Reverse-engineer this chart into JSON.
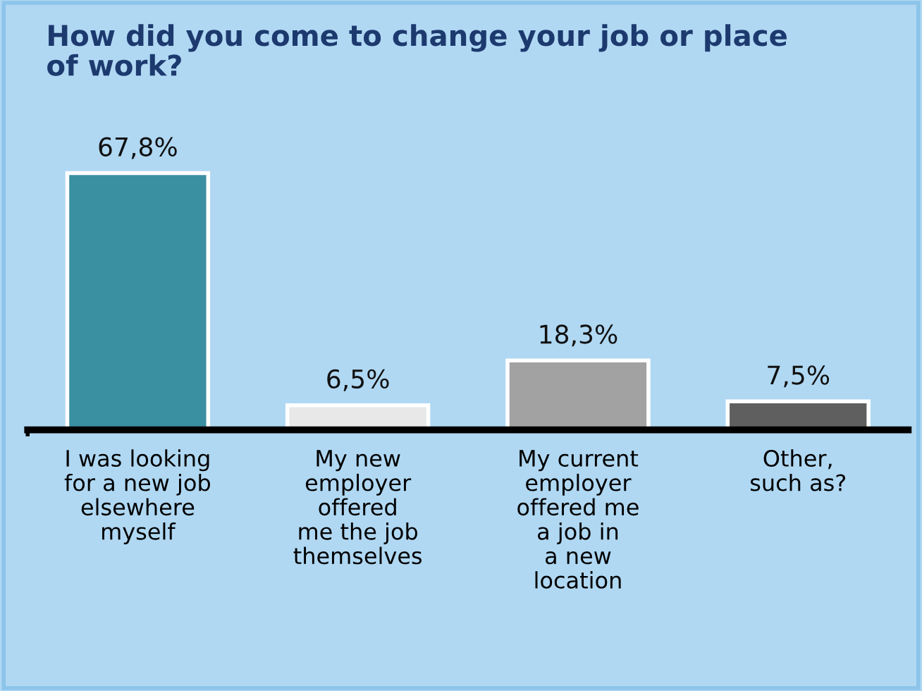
{
  "chart_data": {
    "type": "bar",
    "title": "How did you come to change your job or place\nof work?",
    "categories": [
      "I was looking\nfor a new job\nelsewhere\nmyself",
      "My new\nemployer\noffered\nme the job\nthemselves",
      "My current\nemployer\noffered me\na job in\na new\nlocation",
      "Other,\nsuch as?"
    ],
    "values": [
      67.8,
      6.5,
      18.3,
      7.5
    ],
    "value_labels": [
      "67,8%",
      "6,5%",
      "18,3%",
      "7,5%"
    ],
    "colors": [
      "#3a8fa1",
      "#e8e8e8",
      "#a2a2a2",
      "#5f5f5f"
    ],
    "grid": false,
    "legend": false
  }
}
